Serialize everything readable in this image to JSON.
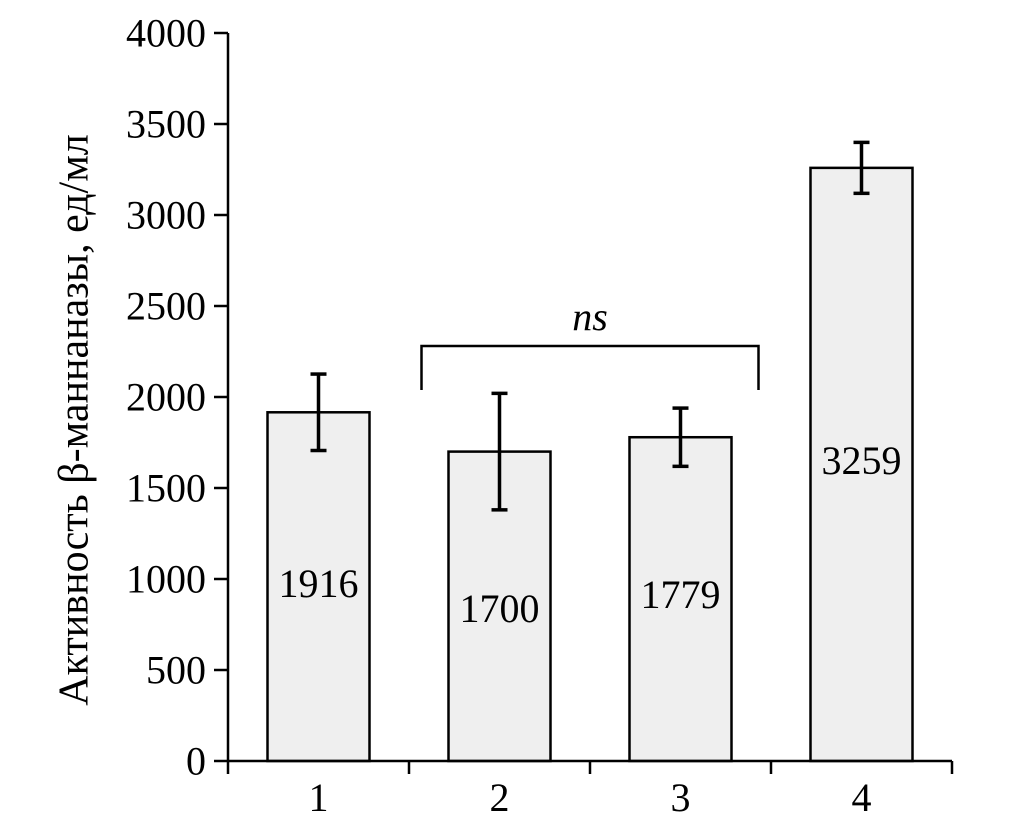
{
  "chart_data": {
    "type": "bar",
    "categories": [
      "1",
      "2",
      "3",
      "4"
    ],
    "values": [
      1916,
      1700,
      1779,
      3259
    ],
    "error": [
      210,
      320,
      160,
      140
    ],
    "value_labels": [
      "1916",
      "1700",
      "1779",
      "3259"
    ],
    "ylabel": "Активность β-маннаназы, ед/мл",
    "xlabel": "",
    "ylim": [
      0,
      4000
    ],
    "yticks": [
      0,
      500,
      1000,
      1500,
      2000,
      2500,
      3000,
      3500,
      4000
    ],
    "ytick_labels": [
      "0",
      "500",
      "1000",
      "1500",
      "2000",
      "2500",
      "3000",
      "3500",
      "4000"
    ],
    "grid": false,
    "legend": "none",
    "annotation": {
      "text": "ns",
      "from_category": "2",
      "to_category": "3",
      "level": 2280
    },
    "colors": {
      "bar_fill": "#efefef",
      "bar_stroke": "#000000",
      "error_bar": "#000000"
    }
  }
}
